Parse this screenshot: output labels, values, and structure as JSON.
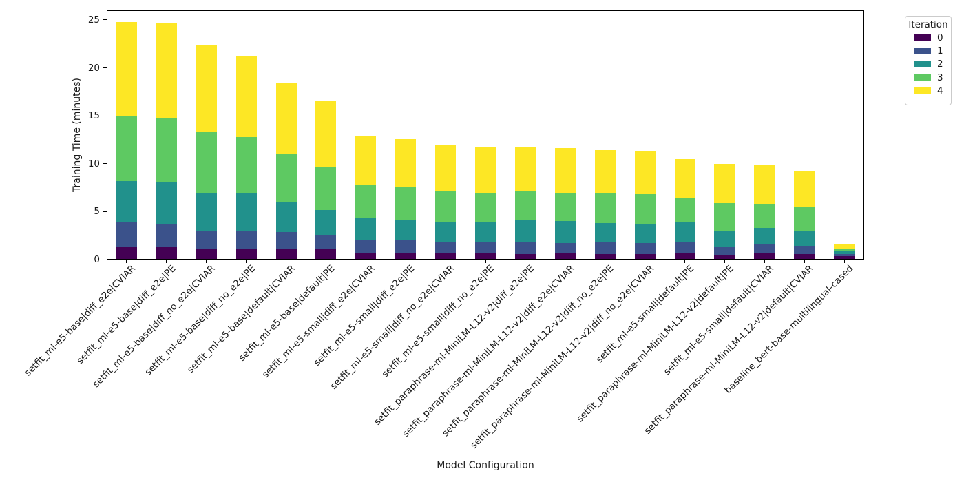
{
  "chart_data": {
    "type": "bar",
    "stacked": true,
    "title": "",
    "xlabel": "Model Configuration",
    "ylabel": "Training Time (minutes)",
    "ylim": [
      0,
      26
    ],
    "yticks": [
      0,
      5,
      10,
      15,
      20,
      25
    ],
    "grid": false,
    "bar_width_fraction": 0.52,
    "legend": {
      "title": "Iteration",
      "position": "upper-right-outside",
      "entries": [
        "0",
        "1",
        "2",
        "3",
        "4"
      ]
    },
    "categories": [
      "setfit_ml-e5-base|diff_e2e|CVIAR",
      "setfit_ml-e5-base|diff_e2e|PE",
      "setfit_ml-e5-base|diff_no_e2e|CVIAR",
      "setfit_ml-e5-base|diff_no_e2e|PE",
      "setfit_ml-e5-base|default|CVIAR",
      "setfit_ml-e5-base|default|PE",
      "setfit_ml-e5-small|diff_e2e|CVIAR",
      "setfit_ml-e5-small|diff_e2e|PE",
      "setfit_ml-e5-small|diff_no_e2e|CVIAR",
      "setfit_ml-e5-small|diff_no_e2e|PE",
      "setfit_paraphrase-ml-MiniLM-L12-v2|diff_e2e|PE",
      "setfit_paraphrase-ml-MiniLM-L12-v2|diff_e2e|CVIAR",
      "setfit_paraphrase-ml-MiniLM-L12-v2|diff_no_e2e|PE",
      "setfit_paraphrase-ml-MiniLM-L12-v2|diff_no_e2e|CVIAR",
      "setfit_ml-e5-small|default|PE",
      "setfit_paraphrase-ml-MiniLM-L12-v2|default|PE",
      "setfit_ml-e5-small|default|CVIAR",
      "setfit_paraphrase-ml-MiniLM-L12-v2|default|CVIAR",
      "baseline_bert-base-multilingual-cased"
    ],
    "series": [
      {
        "name": "0",
        "color": "#440154",
        "values": [
          1.3,
          1.3,
          1.05,
          1.05,
          1.15,
          1.1,
          0.7,
          0.7,
          0.65,
          0.65,
          0.6,
          0.65,
          0.6,
          0.6,
          0.7,
          0.5,
          0.65,
          0.6,
          0.35
        ]
      },
      {
        "name": "1",
        "color": "#3b528b",
        "values": [
          2.6,
          2.35,
          2.0,
          2.0,
          1.75,
          1.5,
          1.35,
          1.3,
          1.2,
          1.15,
          1.2,
          1.1,
          1.2,
          1.15,
          1.15,
          0.9,
          0.9,
          0.85,
          0.2
        ]
      },
      {
        "name": "2",
        "color": "#21918c",
        "values": [
          4.3,
          4.5,
          3.95,
          3.9,
          3.1,
          2.6,
          2.3,
          2.2,
          2.1,
          2.1,
          2.3,
          2.25,
          2.0,
          1.95,
          2.0,
          1.6,
          1.75,
          1.6,
          0.3
        ]
      },
      {
        "name": "3",
        "color": "#5ec962",
        "values": [
          6.8,
          6.55,
          6.3,
          5.85,
          5.0,
          4.4,
          3.45,
          3.4,
          3.15,
          3.1,
          3.1,
          3.0,
          3.1,
          3.1,
          2.65,
          2.9,
          2.5,
          2.4,
          0.3
        ]
      },
      {
        "name": "4",
        "color": "#fde725",
        "values": [
          9.8,
          10.0,
          9.1,
          8.4,
          7.4,
          6.9,
          5.1,
          5.0,
          4.8,
          4.8,
          4.55,
          4.65,
          4.55,
          4.5,
          4.0,
          4.1,
          4.1,
          3.8,
          0.4
        ]
      }
    ],
    "bar_totals": [
      24.8,
      24.7,
      22.4,
      21.2,
      18.4,
      16.5,
      12.9,
      12.6,
      11.9,
      11.8,
      11.75,
      11.65,
      11.45,
      11.3,
      10.5,
      10.0,
      9.9,
      9.25,
      1.55
    ]
  }
}
